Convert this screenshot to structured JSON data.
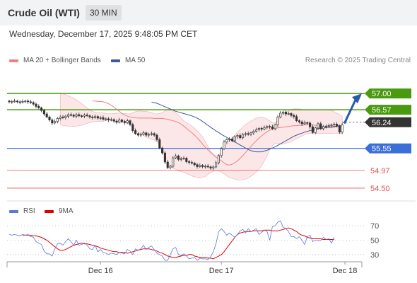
{
  "header": {
    "title": "Crude Oil (WTI)",
    "interval": "30 MIN"
  },
  "datetime": "Wednesday, December 17, 2025 9:48:05 PM CET",
  "legend": {
    "ma20_label": "MA 20 + Bollinger Bands",
    "ma20_color": "#f08080",
    "ma50_label": "MA 50",
    "ma50_color": "#3a5a98"
  },
  "research": "Research © 2025 Trading Central",
  "rsi_legend": {
    "rsi_label": "RSI",
    "rsi_color": "#5a78d6",
    "ma_label": "9MA",
    "ma_color": "#e00000"
  },
  "colors": {
    "resistance": "#4a9a10",
    "support": "#3a6ed8",
    "low_level": "#e05050",
    "price": "#333333",
    "arrow": "#2a5aa8",
    "candle_up": "#ffffff",
    "candle_down": "#333333"
  },
  "chart_data": [
    {
      "type": "candlestick",
      "title": "Crude Oil (WTI)",
      "ylim": [
        54.2,
        57.6
      ],
      "x_ticks": [
        {
          "i": 34,
          "label": "Dec 16"
        },
        {
          "i": 79,
          "label": "Dec 17"
        },
        {
          "i": 125,
          "label": "Dec 18"
        }
      ],
      "closes": [
        56.78,
        56.79,
        56.8,
        56.78,
        56.77,
        56.79,
        56.8,
        56.78,
        56.76,
        56.72,
        56.66,
        56.62,
        56.55,
        56.46,
        56.38,
        56.3,
        56.22,
        56.26,
        56.34,
        56.38,
        56.36,
        56.4,
        56.44,
        56.43,
        56.4,
        56.44,
        56.41,
        56.4,
        56.43,
        56.41,
        56.38,
        56.36,
        56.39,
        56.35,
        56.36,
        56.32,
        56.33,
        56.3,
        56.31,
        56.27,
        56.24,
        56.3,
        56.26,
        56.23,
        56.28,
        56.18,
        56.02,
        55.94,
        55.9,
        55.92,
        55.96,
        55.9,
        55.92,
        55.94,
        55.9,
        55.78,
        55.56,
        55.43,
        55.19,
        55.04,
        55.08,
        55.3,
        55.35,
        55.26,
        55.28,
        55.29,
        55.2,
        55.18,
        55.16,
        55.12,
        55.07,
        55.1,
        55.07,
        55.08,
        55.06,
        55.03,
        55.06,
        55.17,
        55.36,
        55.54,
        55.72,
        55.78,
        55.8,
        55.75,
        55.86,
        55.89,
        55.83,
        55.92,
        55.94,
        55.92,
        55.96,
        56.0,
        56.04,
        56.08,
        56.06,
        56.1,
        56.13,
        56.12,
        56.07,
        56.17,
        56.38,
        56.48,
        56.51,
        56.46,
        56.47,
        56.42,
        56.39,
        56.28,
        56.25,
        56.2,
        56.23,
        56.22,
        56.12,
        55.97,
        56.09,
        56.2,
        56.07,
        56.13,
        56.14,
        56.15,
        56.17,
        56.19,
        56.14,
        55.98,
        56.17
      ],
      "current_price": 56.24,
      "levels": [
        {
          "label": "57.00",
          "value": 57.0,
          "kind": "resistance"
        },
        {
          "label": "56.57",
          "value": 56.57,
          "kind": "resistance"
        },
        {
          "label": "56.24",
          "value": 56.24,
          "kind": "price"
        },
        {
          "label": "55.55",
          "value": 55.55,
          "kind": "support"
        },
        {
          "label": "54.97",
          "value": 54.97,
          "kind": "low_level"
        },
        {
          "label": "54.50",
          "value": 54.5,
          "kind": "low_level"
        }
      ],
      "series": [
        {
          "name": "MA 20 + Bollinger Bands",
          "values": [
            56.8,
            56.8,
            56.79,
            56.79,
            56.78,
            56.76,
            56.73,
            56.69,
            56.64,
            56.58,
            56.53,
            56.47,
            56.43,
            56.4,
            56.38,
            56.37,
            56.36,
            56.35,
            56.35,
            56.35,
            56.35,
            56.35,
            56.35,
            56.34,
            56.34,
            56.34,
            56.34,
            56.33,
            56.32,
            56.3,
            56.28,
            56.26,
            56.23,
            56.19,
            56.14,
            56.08,
            56.02,
            55.96,
            55.9,
            55.83,
            55.75,
            55.66,
            55.58,
            55.51,
            55.44,
            55.38,
            55.32,
            55.27,
            55.22,
            55.17,
            55.12,
            55.11,
            55.13,
            55.17,
            55.22,
            55.29,
            55.36,
            55.44,
            55.52,
            55.6,
            55.68,
            55.75,
            55.82,
            55.88,
            55.94,
            55.99,
            56.03,
            56.06,
            56.08,
            56.09,
            56.1,
            56.11,
            56.12,
            56.13,
            56.14,
            56.15,
            56.15,
            56.16,
            56.16,
            56.17,
            56.17,
            56.17,
            56.17,
            56.16,
            56.15,
            56.14,
            56.12,
            56.11,
            56.1,
            56.1,
            56.11,
            56.12,
            56.12,
            56.13
          ]
        },
        {
          "name": "MA 50",
          "values": [
            56.77,
            56.76,
            56.74,
            56.71,
            56.68,
            56.65,
            56.62,
            56.59,
            56.56,
            56.53,
            56.51,
            56.49,
            56.47,
            56.45,
            56.43,
            56.41,
            56.38,
            56.35,
            56.31,
            56.26,
            56.21,
            56.16,
            56.11,
            56.06,
            56.01,
            55.97,
            55.92,
            55.88,
            55.84,
            55.8,
            55.76,
            55.72,
            55.68,
            55.64,
            55.6,
            55.56,
            55.52,
            55.49,
            55.47,
            55.46,
            55.46,
            55.46,
            55.48,
            55.5,
            55.53,
            55.56,
            55.59,
            55.63,
            55.67,
            55.71,
            55.75,
            55.79,
            55.83,
            55.87,
            55.9,
            55.93,
            55.95,
            55.98,
            56.0,
            56.02,
            56.04,
            56.06,
            56.07,
            56.08,
            56.09,
            56.1,
            56.11,
            56.12,
            56.13,
            56.14,
            56.15,
            56.15
          ]
        }
      ]
    },
    {
      "type": "line",
      "ylim": [
        20,
        80
      ],
      "y_ticks": [
        70,
        50,
        30
      ],
      "series": [
        {
          "name": "RSI",
          "values": [
            58,
            57,
            58,
            57,
            56,
            58,
            57,
            58,
            55,
            54,
            48,
            46,
            44,
            35,
            31,
            31,
            28,
            38,
            45,
            46,
            43,
            48,
            52,
            48,
            43,
            50,
            43,
            44,
            46,
            43,
            38,
            37,
            43,
            34,
            37,
            33,
            32,
            30,
            32,
            31,
            30,
            33,
            32,
            31,
            37,
            35,
            30,
            38,
            36,
            38,
            43,
            37,
            40,
            42,
            37,
            32,
            30,
            28,
            22,
            22,
            30,
            38,
            40,
            30,
            29,
            31,
            28,
            24,
            25,
            26,
            22,
            25,
            24,
            24,
            23,
            27,
            34,
            45,
            62,
            66,
            62,
            57,
            60,
            57,
            54,
            58,
            63,
            65,
            60,
            66,
            62,
            64,
            66,
            58,
            61,
            64,
            62,
            50,
            69,
            70,
            75,
            77,
            68,
            66,
            62,
            55,
            55,
            52,
            55,
            50,
            44,
            55,
            57,
            48,
            50,
            49,
            50,
            54,
            51,
            52,
            46,
            54
          ],
          "color": "#5a78d6"
        },
        {
          "name": "9MA",
          "values": [
            57,
            57,
            57,
            57,
            56,
            56,
            55,
            54,
            52,
            50,
            47,
            44,
            41,
            38,
            36,
            36,
            37,
            39,
            41,
            43,
            44,
            45,
            46,
            45,
            45,
            44,
            43,
            42,
            41,
            39,
            38,
            37,
            36,
            35,
            34,
            34,
            33,
            33,
            33,
            32,
            33,
            34,
            35,
            36,
            37,
            38,
            38,
            38,
            37,
            36,
            35,
            33,
            32,
            30,
            28,
            27,
            26,
            26,
            27,
            28,
            29,
            29,
            30,
            30,
            28,
            27,
            26,
            26,
            26,
            25,
            25,
            24,
            26,
            28,
            30,
            34,
            39,
            44,
            49,
            54,
            58,
            60,
            61,
            62,
            62,
            62,
            63,
            63,
            63,
            63,
            64,
            64,
            64,
            63,
            63,
            63,
            64,
            65,
            66,
            67,
            66,
            64,
            62,
            59,
            57,
            56,
            54,
            53,
            52,
            52,
            52,
            52,
            51,
            51,
            51,
            51,
            51
          ],
          "color": "#e00000"
        }
      ]
    }
  ]
}
